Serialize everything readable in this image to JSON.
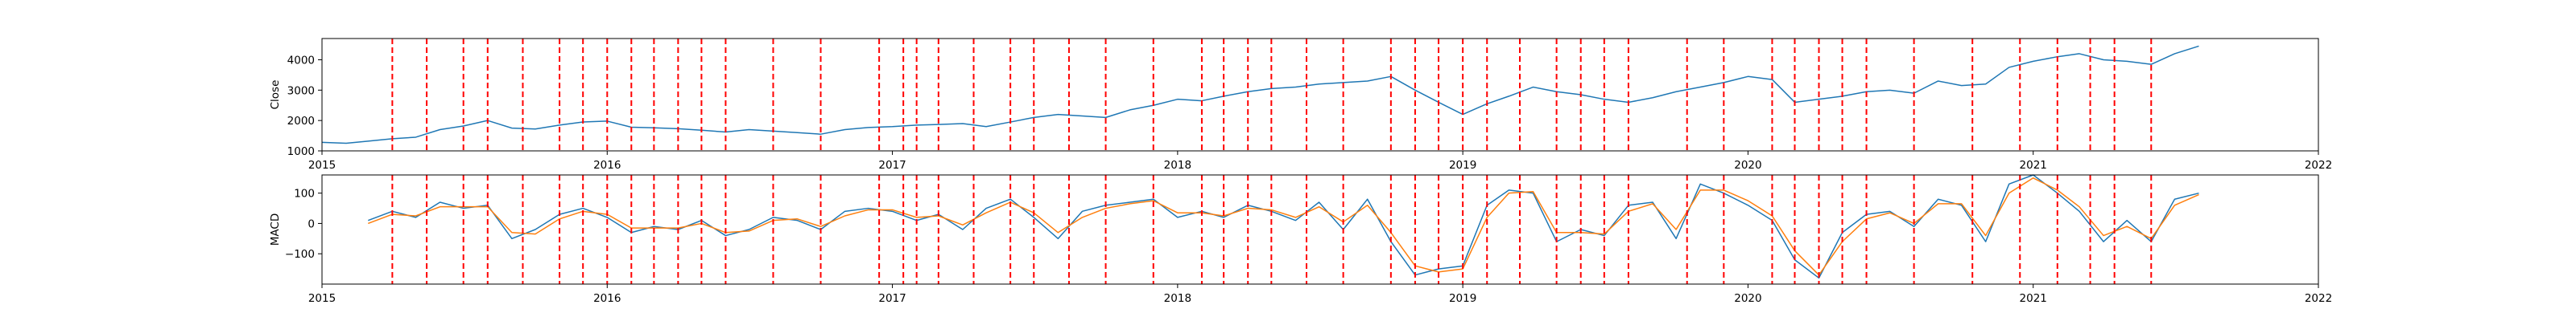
{
  "chart_data": [
    {
      "type": "line",
      "panel": "top",
      "ylabel": "Close",
      "xlabel": "",
      "xlim": [
        "2015-01-01",
        "2022-01-01"
      ],
      "ylim": [
        1000,
        4700
      ],
      "x_ticks": [
        "2015",
        "2016",
        "2017",
        "2018",
        "2019",
        "2020",
        "2021",
        "2022"
      ],
      "y_ticks": [
        "1000",
        "2000",
        "3000",
        "4000"
      ],
      "grid": false,
      "series": [
        {
          "color": "#1f77b4",
          "x": [
            "2015-01-01",
            "2015-02-01",
            "2015-03-01",
            "2015-04-01",
            "2015-05-01",
            "2015-06-01",
            "2015-07-01",
            "2015-08-01",
            "2015-09-01",
            "2015-10-01",
            "2015-11-01",
            "2015-12-01",
            "2016-01-01",
            "2016-02-01",
            "2016-03-01",
            "2016-04-01",
            "2016-05-01",
            "2016-06-01",
            "2016-07-01",
            "2016-08-01",
            "2016-09-01",
            "2016-10-01",
            "2016-11-01",
            "2016-12-01",
            "2017-01-01",
            "2017-02-01",
            "2017-03-01",
            "2017-04-01",
            "2017-05-01",
            "2017-06-01",
            "2017-07-01",
            "2017-08-01",
            "2017-09-01",
            "2017-10-01",
            "2017-11-01",
            "2017-12-01",
            "2018-01-01",
            "2018-02-01",
            "2018-03-01",
            "2018-04-01",
            "2018-05-01",
            "2018-06-01",
            "2018-07-01",
            "2018-08-01",
            "2018-09-01",
            "2018-10-01",
            "2018-11-01",
            "2018-12-01",
            "2019-01-01",
            "2019-02-01",
            "2019-03-01",
            "2019-04-01",
            "2019-05-01",
            "2019-06-01",
            "2019-07-01",
            "2019-08-01",
            "2019-09-01",
            "2019-10-01",
            "2019-11-01",
            "2019-12-01",
            "2020-01-01",
            "2020-02-01",
            "2020-03-01",
            "2020-04-01",
            "2020-05-01",
            "2020-06-01",
            "2020-07-01",
            "2020-08-01",
            "2020-09-01",
            "2020-10-01",
            "2020-11-01",
            "2020-12-01",
            "2021-01-01",
            "2021-02-01",
            "2021-03-01",
            "2021-04-01",
            "2021-05-01",
            "2021-06-01",
            "2021-07-01",
            "2021-08-01"
          ],
          "y": [
            1280,
            1250,
            1320,
            1400,
            1450,
            1700,
            1820,
            2000,
            1750,
            1720,
            1850,
            1950,
            1980,
            1780,
            1760,
            1730,
            1680,
            1620,
            1700,
            1650,
            1600,
            1550,
            1700,
            1770,
            1800,
            1850,
            1870,
            1900,
            1800,
            1950,
            2100,
            2200,
            2150,
            2100,
            2350,
            2500,
            2700,
            2650,
            2800,
            2950,
            3050,
            3100,
            3200,
            3250,
            3300,
            3450,
            3000,
            2600,
            2200,
            2550,
            2800,
            3100,
            2950,
            2850,
            2700,
            2600,
            2750,
            2950,
            3100,
            3250,
            3450,
            3350,
            2600,
            2700,
            2800,
            2950,
            3000,
            2900,
            3300,
            3150,
            3200,
            3750,
            3950,
            4100,
            4200,
            4000,
            3950,
            3850,
            4200,
            4450
          ]
        }
      ],
      "events": [
        "2015-04-01",
        "2015-05-15",
        "2015-07-01",
        "2015-08-01",
        "2015-09-15",
        "2015-11-01",
        "2015-12-01",
        "2016-01-01",
        "2016-02-01",
        "2016-03-01",
        "2016-04-01",
        "2016-05-01",
        "2016-06-01",
        "2016-08-01",
        "2016-10-01",
        "2016-12-15",
        "2017-01-15",
        "2017-02-01",
        "2017-03-01",
        "2017-04-15",
        "2017-06-01",
        "2017-07-01",
        "2017-08-15",
        "2017-10-01",
        "2017-12-01",
        "2018-02-01",
        "2018-03-01",
        "2018-04-01",
        "2018-05-01",
        "2018-06-15",
        "2018-08-01",
        "2018-10-01",
        "2018-11-01",
        "2018-12-01",
        "2019-01-01",
        "2019-02-01",
        "2019-03-15",
        "2019-05-01",
        "2019-06-01",
        "2019-07-01",
        "2019-08-01",
        "2019-10-15",
        "2019-12-01",
        "2020-02-01",
        "2020-03-01",
        "2020-04-01",
        "2020-05-01",
        "2020-06-01",
        "2020-08-01",
        "2020-10-15",
        "2020-12-15",
        "2021-02-01",
        "2021-03-15",
        "2021-04-15",
        "2021-06-01"
      ]
    },
    {
      "type": "line",
      "panel": "bottom",
      "ylabel": "MACD",
      "xlabel": "",
      "xlim": [
        "2015-01-01",
        "2022-01-01"
      ],
      "ylim": [
        -200,
        160
      ],
      "x_ticks": [
        "2015",
        "2016",
        "2017",
        "2018",
        "2019",
        "2020",
        "2021",
        "2022"
      ],
      "y_ticks": [
        "-100",
        "0",
        "100"
      ],
      "grid": false,
      "series": [
        {
          "color": "#1f77b4",
          "x": [
            "2015-03-01",
            "2015-04-01",
            "2015-05-01",
            "2015-06-01",
            "2015-07-01",
            "2015-08-01",
            "2015-09-01",
            "2015-10-01",
            "2015-11-01",
            "2015-12-01",
            "2016-01-01",
            "2016-02-01",
            "2016-03-01",
            "2016-04-01",
            "2016-05-01",
            "2016-06-01",
            "2016-07-01",
            "2016-08-01",
            "2016-09-01",
            "2016-10-01",
            "2016-11-01",
            "2016-12-01",
            "2017-01-01",
            "2017-02-01",
            "2017-03-01",
            "2017-04-01",
            "2017-05-01",
            "2017-06-01",
            "2017-07-01",
            "2017-08-01",
            "2017-09-01",
            "2017-10-01",
            "2017-11-01",
            "2017-12-01",
            "2018-01-01",
            "2018-02-01",
            "2018-03-01",
            "2018-04-01",
            "2018-05-01",
            "2018-06-01",
            "2018-07-01",
            "2018-08-01",
            "2018-09-01",
            "2018-10-01",
            "2018-11-01",
            "2018-12-01",
            "2019-01-01",
            "2019-02-01",
            "2019-03-01",
            "2019-04-01",
            "2019-05-01",
            "2019-06-01",
            "2019-07-01",
            "2019-08-01",
            "2019-09-01",
            "2019-10-01",
            "2019-11-01",
            "2019-12-01",
            "2020-01-01",
            "2020-02-01",
            "2020-03-01",
            "2020-04-01",
            "2020-05-01",
            "2020-06-01",
            "2020-07-01",
            "2020-08-01",
            "2020-09-01",
            "2020-10-01",
            "2020-11-01",
            "2020-12-01",
            "2021-01-01",
            "2021-02-01",
            "2021-03-01",
            "2021-04-01",
            "2021-05-01",
            "2021-06-01",
            "2021-07-01",
            "2021-08-01"
          ],
          "y": [
            10,
            40,
            20,
            70,
            50,
            60,
            -50,
            -20,
            30,
            50,
            20,
            -30,
            -10,
            -20,
            10,
            -40,
            -20,
            20,
            10,
            -20,
            40,
            50,
            40,
            10,
            30,
            -20,
            50,
            80,
            20,
            -50,
            40,
            60,
            70,
            80,
            20,
            40,
            20,
            60,
            40,
            10,
            70,
            -20,
            80,
            -60,
            -170,
            -150,
            -140,
            60,
            110,
            100,
            -60,
            -20,
            -40,
            60,
            70,
            -50,
            130,
            100,
            60,
            10,
            -120,
            -180,
            -30,
            30,
            40,
            -10,
            80,
            60,
            -60,
            130,
            160,
            100,
            40,
            -60,
            10,
            -60,
            80,
            100
          ]
        },
        {
          "color": "#ff7f0e",
          "x": [
            "2015-03-01",
            "2015-04-01",
            "2015-05-01",
            "2015-06-01",
            "2015-07-01",
            "2015-08-01",
            "2015-09-01",
            "2015-10-01",
            "2015-11-01",
            "2015-12-01",
            "2016-01-01",
            "2016-02-01",
            "2016-03-01",
            "2016-04-01",
            "2016-05-01",
            "2016-06-01",
            "2016-07-01",
            "2016-08-01",
            "2016-09-01",
            "2016-10-01",
            "2016-11-01",
            "2016-12-01",
            "2017-01-01",
            "2017-02-01",
            "2017-03-01",
            "2017-04-01",
            "2017-05-01",
            "2017-06-01",
            "2017-07-01",
            "2017-08-01",
            "2017-09-01",
            "2017-10-01",
            "2017-11-01",
            "2017-12-01",
            "2018-01-01",
            "2018-02-01",
            "2018-03-01",
            "2018-04-01",
            "2018-05-01",
            "2018-06-01",
            "2018-07-01",
            "2018-08-01",
            "2018-09-01",
            "2018-10-01",
            "2018-11-01",
            "2018-12-01",
            "2019-01-01",
            "2019-02-01",
            "2019-03-01",
            "2019-04-01",
            "2019-05-01",
            "2019-06-01",
            "2019-07-01",
            "2019-08-01",
            "2019-09-01",
            "2019-10-01",
            "2019-11-01",
            "2019-12-01",
            "2020-01-01",
            "2020-02-01",
            "2020-03-01",
            "2020-04-01",
            "2020-05-01",
            "2020-06-01",
            "2020-07-01",
            "2020-08-01",
            "2020-09-01",
            "2020-10-01",
            "2020-11-01",
            "2020-12-01",
            "2021-01-01",
            "2021-02-01",
            "2021-03-01",
            "2021-04-01",
            "2021-05-01",
            "2021-06-01",
            "2021-07-01",
            "2021-08-01"
          ],
          "y": [
            0,
            30,
            25,
            55,
            55,
            55,
            -30,
            -35,
            15,
            40,
            30,
            -15,
            -15,
            -15,
            0,
            -30,
            -25,
            10,
            15,
            -10,
            25,
            45,
            45,
            20,
            25,
            -5,
            35,
            70,
            35,
            -30,
            20,
            50,
            65,
            75,
            35,
            35,
            25,
            50,
            45,
            20,
            55,
            5,
            60,
            -30,
            -140,
            -160,
            -150,
            20,
            100,
            105,
            -30,
            -30,
            -35,
            40,
            65,
            -20,
            110,
            110,
            75,
            25,
            -90,
            -170,
            -60,
            15,
            35,
            0,
            65,
            65,
            -40,
            100,
            150,
            110,
            55,
            -40,
            -10,
            -50,
            60,
            95
          ]
        }
      ],
      "events": [
        "2015-04-01",
        "2015-05-15",
        "2015-07-01",
        "2015-08-01",
        "2015-09-15",
        "2015-11-01",
        "2015-12-01",
        "2016-01-01",
        "2016-02-01",
        "2016-03-01",
        "2016-04-01",
        "2016-05-01",
        "2016-06-01",
        "2016-08-01",
        "2016-10-01",
        "2016-12-15",
        "2017-01-15",
        "2017-02-01",
        "2017-03-01",
        "2017-04-15",
        "2017-06-01",
        "2017-07-01",
        "2017-08-15",
        "2017-10-01",
        "2017-12-01",
        "2018-02-01",
        "2018-03-01",
        "2018-04-01",
        "2018-05-01",
        "2018-06-15",
        "2018-08-01",
        "2018-10-01",
        "2018-11-01",
        "2018-12-01",
        "2019-01-01",
        "2019-02-01",
        "2019-03-15",
        "2019-05-01",
        "2019-06-01",
        "2019-07-01",
        "2019-08-01",
        "2019-10-15",
        "2019-12-01",
        "2020-02-01",
        "2020-03-01",
        "2020-04-01",
        "2020-05-01",
        "2020-06-01",
        "2020-08-01",
        "2020-10-15",
        "2020-12-15",
        "2021-02-01",
        "2021-03-15",
        "2021-04-15",
        "2021-06-01"
      ]
    }
  ],
  "colors": {
    "event_line": "#ff0000",
    "axes_frame": "#000000"
  }
}
